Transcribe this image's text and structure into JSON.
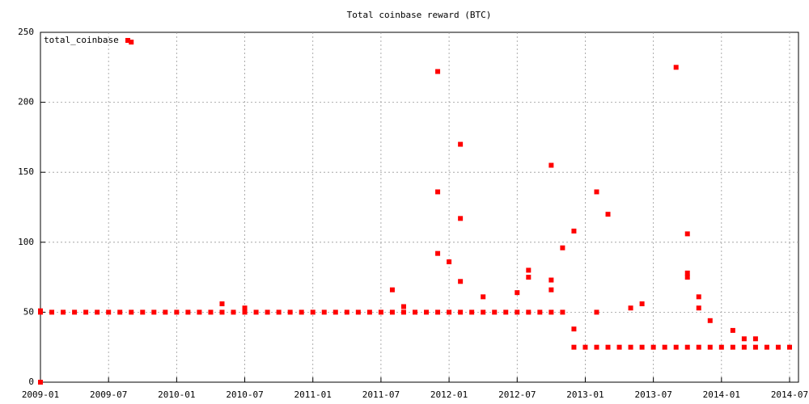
{
  "chart_data": {
    "type": "scatter",
    "title": "Total coinbase reward (BTC)",
    "xlim": [
      "2009-01",
      "2014-07"
    ],
    "xticks": [
      "2009-01",
      "2009-07",
      "2010-01",
      "2010-07",
      "2011-01",
      "2011-07",
      "2012-01",
      "2012-07",
      "2013-01",
      "2013-07",
      "2014-01",
      "2014-07"
    ],
    "ylim": [
      0,
      250
    ],
    "yticks": [
      0,
      50,
      100,
      150,
      200,
      250
    ],
    "grid": true,
    "legend": "top-left",
    "series": [
      {
        "name": "total_coinbase",
        "color": "#ff0000",
        "x": [
          "2009-01",
          "2009-02",
          "2009-03",
          "2009-04",
          "2009-05",
          "2009-06",
          "2009-07",
          "2009-08",
          "2009-09",
          "2009-10",
          "2009-11",
          "2009-12",
          "2010-01",
          "2010-02",
          "2010-03",
          "2010-04",
          "2010-05",
          "2010-06",
          "2010-07",
          "2010-08",
          "2010-09",
          "2010-10",
          "2010-11",
          "2010-12",
          "2011-01",
          "2011-02",
          "2011-03",
          "2011-04",
          "2011-05",
          "2011-06",
          "2011-07",
          "2011-08",
          "2011-09",
          "2011-10",
          "2011-11",
          "2011-12",
          "2012-01",
          "2012-02",
          "2012-03",
          "2012-04",
          "2012-05",
          "2012-06",
          "2012-07",
          "2012-08",
          "2012-09",
          "2012-10",
          "2012-11",
          "2012-12",
          "2013-01",
          "2013-02",
          "2013-03",
          "2013-04",
          "2013-05",
          "2013-06",
          "2013-07",
          "2013-08",
          "2013-09",
          "2013-10",
          "2013-11",
          "2013-12",
          "2014-01",
          "2014-02",
          "2014-03",
          "2014-04",
          "2014-05",
          "2014-06",
          "2014-07",
          "2009-01",
          "2009-09",
          "2009-01",
          "2010-05",
          "2010-07",
          "2011-08",
          "2011-09",
          "2011-12",
          "2011-12",
          "2011-12",
          "2012-02",
          "2012-02",
          "2012-01",
          "2012-02",
          "2012-04",
          "2012-07",
          "2012-08",
          "2012-08",
          "2012-10",
          "2012-10",
          "2012-10",
          "2012-11",
          "2012-12",
          "2012-12",
          "2013-02",
          "2013-02",
          "2013-03",
          "2013-05",
          "2013-06",
          "2013-09",
          "2013-10",
          "2013-10",
          "2013-10",
          "2013-11",
          "2013-11",
          "2013-12",
          "2014-02",
          "2014-03",
          "2014-04"
        ],
        "values": [
          50,
          50,
          50,
          50,
          50,
          50,
          50,
          50,
          50,
          50,
          50,
          50,
          50,
          50,
          50,
          50,
          50,
          50,
          50,
          50,
          50,
          50,
          50,
          50,
          50,
          50,
          50,
          50,
          50,
          50,
          50,
          50,
          50,
          50,
          50,
          50,
          50,
          50,
          50,
          50,
          50,
          50,
          50,
          50,
          50,
          50,
          50,
          25,
          25,
          25,
          25,
          25,
          25,
          25,
          25,
          25,
          25,
          25,
          25,
          25,
          25,
          25,
          25,
          25,
          25,
          25,
          25,
          0,
          243,
          51,
          56,
          53,
          66,
          54,
          222,
          136,
          92,
          170,
          117,
          86,
          72,
          61,
          64,
          80,
          75,
          155,
          73,
          66,
          96,
          108,
          38,
          136,
          50,
          120,
          53,
          56,
          225,
          106,
          78,
          75,
          61,
          53,
          44,
          37,
          31,
          31
        ]
      }
    ]
  }
}
